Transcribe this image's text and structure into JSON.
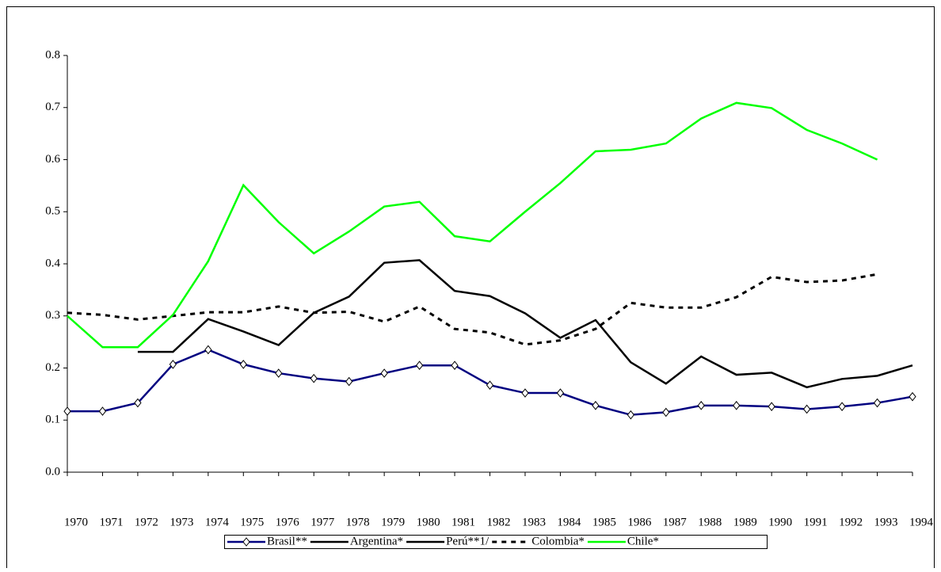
{
  "chart_data": {
    "type": "line",
    "categories": [
      "1970",
      "1971",
      "1972",
      "1973",
      "1974",
      "1975",
      "1976",
      "1977",
      "1978",
      "1979",
      "1980",
      "1981",
      "1982",
      "1983",
      "1984",
      "1985",
      "1986",
      "1987",
      "1988",
      "1989",
      "1990",
      "1991",
      "1992",
      "1993",
      "1994"
    ],
    "ylim": [
      0,
      0.8
    ],
    "yticks": [
      {
        "value": 0,
        "label": "0.0"
      },
      0.1,
      0.2,
      0.3,
      0.4,
      0.5,
      0.6,
      0.7,
      0.8
    ],
    "legend": "bottom",
    "series": [
      {
        "name": "Brasil**",
        "color": "#000080",
        "marker": "diamond",
        "dashed": false,
        "values": [
          0.117,
          0.117,
          0.133,
          0.207,
          0.235,
          0.207,
          0.19,
          0.18,
          0.174,
          0.19,
          0.205,
          0.205,
          0.167,
          0.152,
          0.152,
          0.128,
          0.11,
          0.115,
          0.128,
          0.128,
          0.126,
          0.121,
          0.126,
          0.133,
          0.145
        ]
      },
      {
        "name": "Argentina*",
        "color": "#000000",
        "dashed": false,
        "values": [
          null,
          null,
          0.231,
          0.231,
          0.294,
          0.27,
          0.244,
          0.306,
          0.337,
          0.402,
          0.407,
          0.348,
          0.338,
          0.305,
          0.258,
          0.292,
          0.211,
          0.17,
          0.222,
          0.187,
          0.191,
          0.163,
          0.179,
          0.185,
          0.205
        ]
      },
      {
        "name": "Perú**1/",
        "color": "#000000",
        "dashed": false,
        "values": [
          null,
          null,
          null,
          null,
          null,
          null,
          null,
          null,
          null,
          null,
          null,
          null,
          null,
          null,
          null,
          null,
          null,
          null,
          null,
          null,
          null,
          null,
          null,
          null,
          null
        ]
      },
      {
        "name": "Colombia*",
        "color": "#000000",
        "dashed": true,
        "values": [
          0.306,
          0.302,
          0.293,
          0.3,
          0.307,
          0.307,
          0.318,
          0.306,
          0.308,
          0.289,
          0.318,
          0.275,
          0.268,
          0.245,
          0.253,
          0.275,
          0.325,
          0.316,
          0.316,
          0.336,
          0.375,
          0.365,
          0.368,
          0.38,
          null
        ]
      },
      {
        "name": "Chile*",
        "color": "#00ff00",
        "dashed": false,
        "values": [
          0.3,
          0.24,
          0.24,
          0.302,
          0.405,
          0.551,
          0.48,
          0.42,
          0.462,
          0.51,
          0.519,
          0.453,
          0.443,
          0.5,
          0.555,
          0.616,
          0.619,
          0.631,
          0.679,
          0.709,
          0.699,
          0.657,
          0.631,
          0.6,
          null
        ]
      }
    ]
  }
}
